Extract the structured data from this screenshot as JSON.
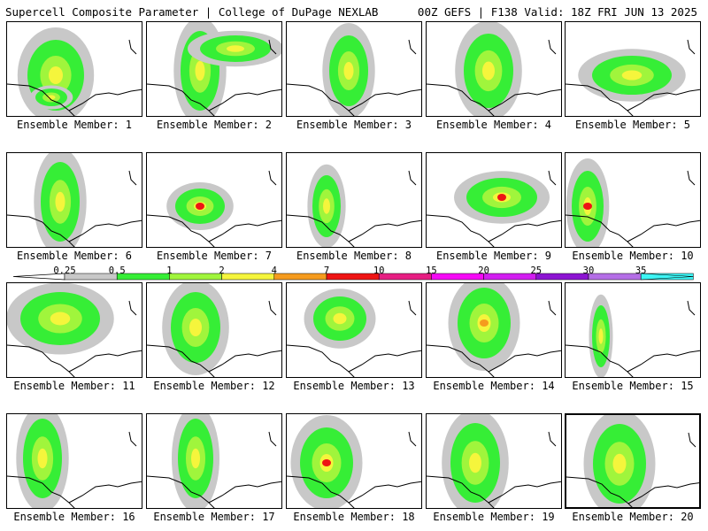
{
  "header": {
    "title_left": "Supercell Composite Parameter | College of DuPage NEXLAB",
    "title_right": "00Z GEFS | F138 Valid: 18Z FRI JUN 13 2025"
  },
  "member_prefix": "Ensemble Member:",
  "members": [
    "1",
    "2",
    "3",
    "4",
    "5",
    "6",
    "7",
    "8",
    "9",
    "10",
    "11",
    "12",
    "13",
    "14",
    "15",
    "16",
    "17",
    "18",
    "19",
    "20"
  ],
  "selected_member": "20",
  "colorbar": {
    "levels": [
      "0.25",
      "0.5",
      "1",
      "2",
      "4",
      "7",
      "10",
      "15",
      "20",
      "25",
      "30",
      "35"
    ],
    "colors": [
      "#c8c8c8",
      "#36ee36",
      "#a0f53c",
      "#f5f53c",
      "#f59b1e",
      "#ee1414",
      "#e61e82",
      "#f50af5",
      "#d21ef0",
      "#8c14d2",
      "#b46ee6",
      "#3cf5f5"
    ]
  }
}
